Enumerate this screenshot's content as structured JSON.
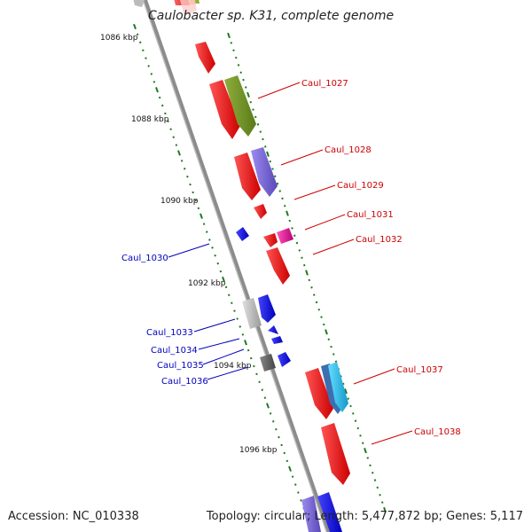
{
  "title": "Caulobacter sp. K31, complete genome",
  "footer": {
    "accession": "Accession: NC_010338",
    "summary": "Topology: circular; Length: 5,477,872 bp; Genes: 5,117"
  },
  "scale_labels": [
    "1086 kbp",
    "1088 kbp",
    "1090 kbp",
    "1092 kbp",
    "1094 kbp",
    "1096 kbp"
  ],
  "forward_genes": [
    "Caul_1027",
    "Caul_1028",
    "Caul_1029",
    "Caul_1031",
    "Caul_1032",
    "Caul_1037",
    "Caul_1038"
  ],
  "reverse_genes": [
    "Caul_1030",
    "Caul_1033",
    "Caul_1034",
    "Caul_1035",
    "Caul_1036"
  ],
  "colors": {
    "forward_label": "#cc0000",
    "reverse_label": "#0000bb",
    "backbone": "#8c8c8c",
    "ticks": "#1f7a1f",
    "cds_forward": "#ee1111",
    "cds_reverse": "#1111ee",
    "rna_green": "#6b8e23",
    "rna_purple": "#7b68d8",
    "rna_cyan": "#22ccee",
    "rna_magenta": "#ee22aa",
    "hypothetical": "#bbbbbb"
  }
}
